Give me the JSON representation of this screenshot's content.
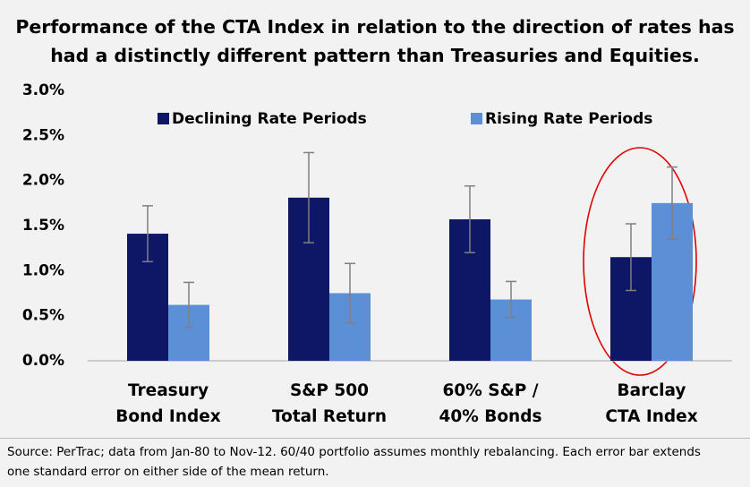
{
  "chart_data": {
    "type": "bar",
    "title": "Performance of the CTA Index in relation to the direction of rates has had a distinctly different pattern than Treasuries and Equities.",
    "categories": [
      [
        "Treasury",
        "Bond Index"
      ],
      [
        "S&P 500",
        "Total Return"
      ],
      [
        "60% S&P /",
        "40% Bonds"
      ],
      [
        "Barclay",
        "CTA Index"
      ]
    ],
    "series": [
      {
        "name": "Declining Rate Periods",
        "color": "#0d1766",
        "values": [
          1.41,
          1.81,
          1.57,
          1.15
        ],
        "errors": [
          0.31,
          0.5,
          0.37,
          0.37
        ]
      },
      {
        "name": "Rising Rate Periods",
        "color": "#5b8fd6",
        "values": [
          0.62,
          0.75,
          0.68,
          1.75
        ],
        "errors": [
          0.25,
          0.33,
          0.2,
          0.4
        ]
      }
    ],
    "ylim": [
      0,
      3
    ],
    "yticks": [
      {
        "value": 0,
        "label": "0.0%"
      },
      {
        "value": 0.5,
        "label": "0.5%"
      },
      {
        "value": 1,
        "label": "1.0%"
      },
      {
        "value": 1.5,
        "label": "1.5%"
      },
      {
        "value": 2,
        "label": "2.0%"
      },
      {
        "value": 2.5,
        "label": "2.5%"
      },
      {
        "value": 3,
        "label": "3.0%"
      }
    ],
    "grid": false,
    "legend": "top",
    "footnote": "Source: PerTrac; data from Jan-80 to Nov-12. 60/40 portfolio assumes monthly rebalancing. Each error bar extends one standard error on either side of the mean return."
  }
}
